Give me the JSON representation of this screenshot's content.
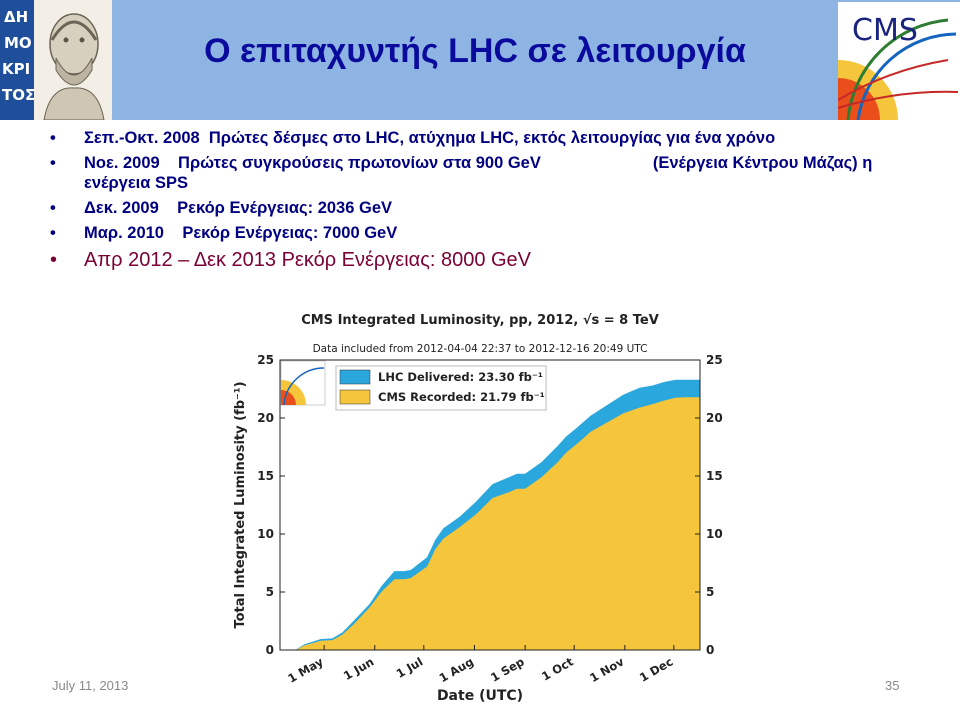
{
  "slide": {
    "title": "Ο επιταχυντής LHC σε λειτουργία",
    "bullets": [
      {
        "date": "Σεπ.-Οκτ. 2008",
        "text": "Πρώτες δέσμες στο LHC, ατύχημα LHC, εκτός  λειτουργίας για ένα χρόνο"
      },
      {
        "date": "Νοε. 2009",
        "text": "Πρώτες συγκρούσεις πρωτονίων στα 900 GeV",
        "text2": "(Ενέργεια Κέντρου Μάζας) η ενέργεια SPS"
      },
      {
        "date": "Δεκ. 2009",
        "text": "Ρεκόρ Ενέργειας: 2036 GeV"
      },
      {
        "date": "Μαρ. 2010",
        "text": "Ρεκόρ Ενέργειας: 7000 GeV"
      }
    ],
    "highlight": "Απρ 2012 – Δεκ 2013 Ρεκόρ Ενέργειας: 8000 GeV",
    "bullet_char": "•",
    "footer_date": "July 11, 2013",
    "page_number": "35",
    "logo_left_text": [
      "ΔΗ",
      "ΜΟ",
      "ΚΡΙ",
      "ΤΟΣ"
    ],
    "logo_right_text": "CMS",
    "colors": {
      "header": "#8eb4e3",
      "title": "#0a0a9c",
      "bullet_text": "#000080",
      "highlight": "#7a0035",
      "delivered": "#2aa7dc",
      "recorded": "#f5c53b"
    }
  },
  "chart_data": {
    "type": "area",
    "title": "CMS Integrated Luminosity, pp, 2012, √s = 8 TeV",
    "subtitle": "Data included from 2012-04-04 22:37 to 2012-12-16 20:49 UTC",
    "xlabel": "Date (UTC)",
    "ylabel": "Total Integrated Luminosity (fb⁻¹)",
    "x_ticks": [
      "1 May",
      "1 Jun",
      "1 Jul",
      "1 Aug",
      "1 Sep",
      "1 Oct",
      "1 Nov",
      "1 Dec"
    ],
    "x_tick_days": [
      27,
      58,
      88,
      119,
      150,
      180,
      211,
      241
    ],
    "y_ticks": [
      0,
      5,
      10,
      15,
      20,
      25
    ],
    "ylim": [
      0,
      25
    ],
    "xlim_days": [
      0,
      257
    ],
    "legend_placement": "top-left",
    "series": [
      {
        "name": "LHC Delivered: 23.30 fb⁻¹",
        "color": "#2aa7dc",
        "x": [
          0,
          10,
          15,
          25,
          32,
          38,
          45,
          55,
          62,
          70,
          76,
          80,
          90,
          95,
          100,
          110,
          120,
          130,
          140,
          145,
          150,
          160,
          170,
          175,
          182,
          190,
          200,
          210,
          220,
          228,
          235,
          242,
          247,
          251,
          254,
          257
        ],
        "y": [
          0,
          0.05,
          0.5,
          0.95,
          1.0,
          1.5,
          2.5,
          4.0,
          5.5,
          6.8,
          6.8,
          6.9,
          8.0,
          9.5,
          10.5,
          11.5,
          12.8,
          14.3,
          14.9,
          15.2,
          15.2,
          16.2,
          17.6,
          18.4,
          19.2,
          20.2,
          21.1,
          22.0,
          22.6,
          22.8,
          23.1,
          23.3,
          23.3,
          23.3,
          23.3,
          23.3
        ]
      },
      {
        "name": "CMS Recorded: 21.79 fb⁻¹",
        "color": "#f5c53b",
        "x": [
          0,
          10,
          15,
          25,
          32,
          38,
          45,
          55,
          62,
          70,
          76,
          80,
          90,
          95,
          100,
          110,
          120,
          130,
          140,
          145,
          150,
          160,
          170,
          175,
          182,
          190,
          200,
          210,
          220,
          228,
          235,
          242,
          247,
          251,
          254,
          257
        ],
        "y": [
          0,
          0.03,
          0.4,
          0.8,
          0.85,
          1.3,
          2.2,
          3.7,
          5.0,
          6.1,
          6.1,
          6.2,
          7.2,
          8.7,
          9.6,
          10.6,
          11.7,
          13.1,
          13.6,
          13.9,
          13.9,
          14.9,
          16.2,
          17.0,
          17.8,
          18.8,
          19.6,
          20.4,
          20.9,
          21.2,
          21.5,
          21.75,
          21.79,
          21.79,
          21.79,
          21.79
        ]
      }
    ]
  }
}
